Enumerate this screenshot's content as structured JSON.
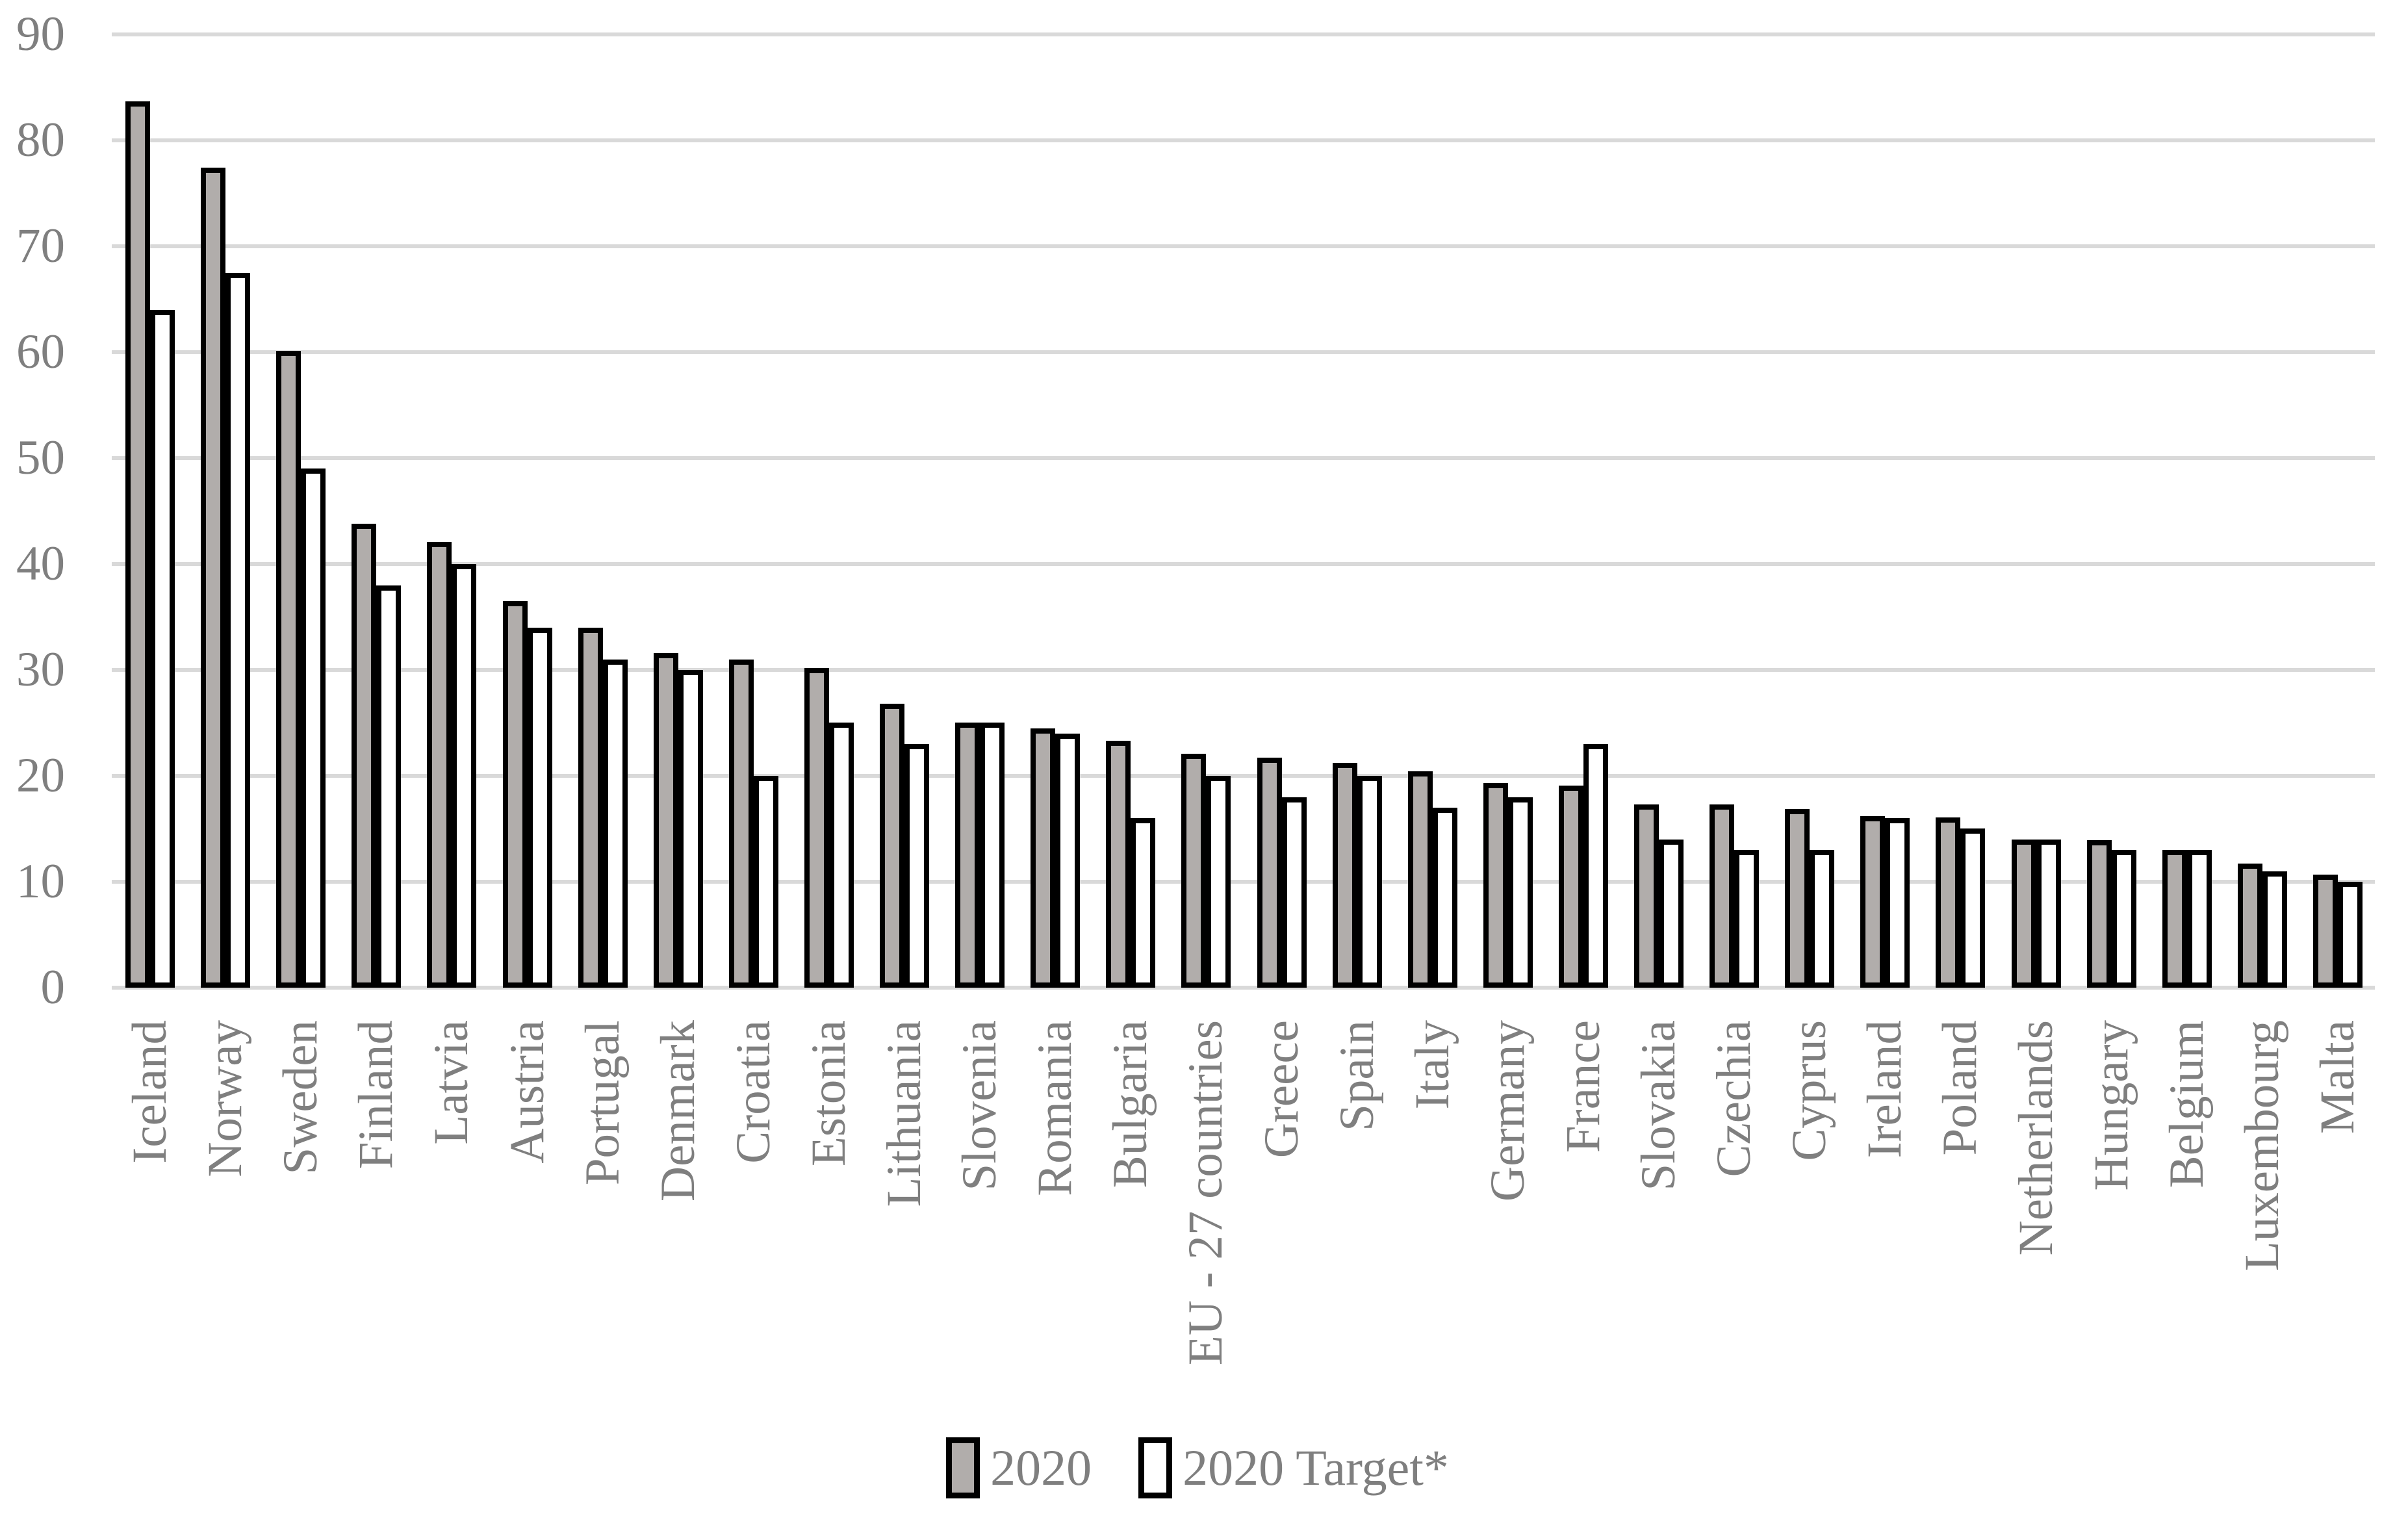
{
  "chart_data": {
    "type": "bar",
    "title": "",
    "xlabel": "",
    "ylabel": "",
    "categories": [
      "Iceland",
      "Norway",
      "Sweden",
      "Finland",
      "Latvia",
      "Austria",
      "Portugal",
      "Denmark",
      "Croatia",
      "Estonia",
      "Lithuania",
      "Slovenia",
      "Romania",
      "Bulgaria",
      "EU - 27 countries",
      "Greece",
      "Spain",
      "Italy",
      "Germany",
      "France",
      "Slovakia",
      "Czechia",
      "Cyprus",
      "Ireland",
      "Poland",
      "Netherlands",
      "Hungary",
      "Belgium",
      "Luxembourg",
      "Malta"
    ],
    "series": [
      {
        "name": "2020",
        "fill": "#B1ADAB",
        "values": [
          83.7,
          77.4,
          60.1,
          43.8,
          42.1,
          36.5,
          34.0,
          31.6,
          31.0,
          30.2,
          26.8,
          25.0,
          24.5,
          23.3,
          22.1,
          21.7,
          21.2,
          20.4,
          19.3,
          19.1,
          17.3,
          17.3,
          16.9,
          16.2,
          16.1,
          14.0,
          13.9,
          13.0,
          11.7,
          10.7
        ]
      },
      {
        "name": "2020 Target*",
        "fill": "#FFFFFF",
        "values": [
          64,
          67.5,
          49,
          38,
          40,
          34,
          31,
          30,
          20,
          25,
          23,
          25,
          24,
          16,
          20,
          18,
          20,
          17,
          18,
          23,
          14,
          13,
          13,
          16,
          15,
          14,
          13,
          13,
          11,
          10
        ]
      }
    ],
    "ylim": [
      0,
      90
    ],
    "yticks": [
      0,
      10,
      20,
      30,
      40,
      50,
      60,
      70,
      80,
      90
    ],
    "grid": true,
    "gridline_color": "#D9D9D9",
    "bar_border_color": "#000000",
    "axis_text_color": "#7F7F7F",
    "legend_position": "bottom"
  }
}
